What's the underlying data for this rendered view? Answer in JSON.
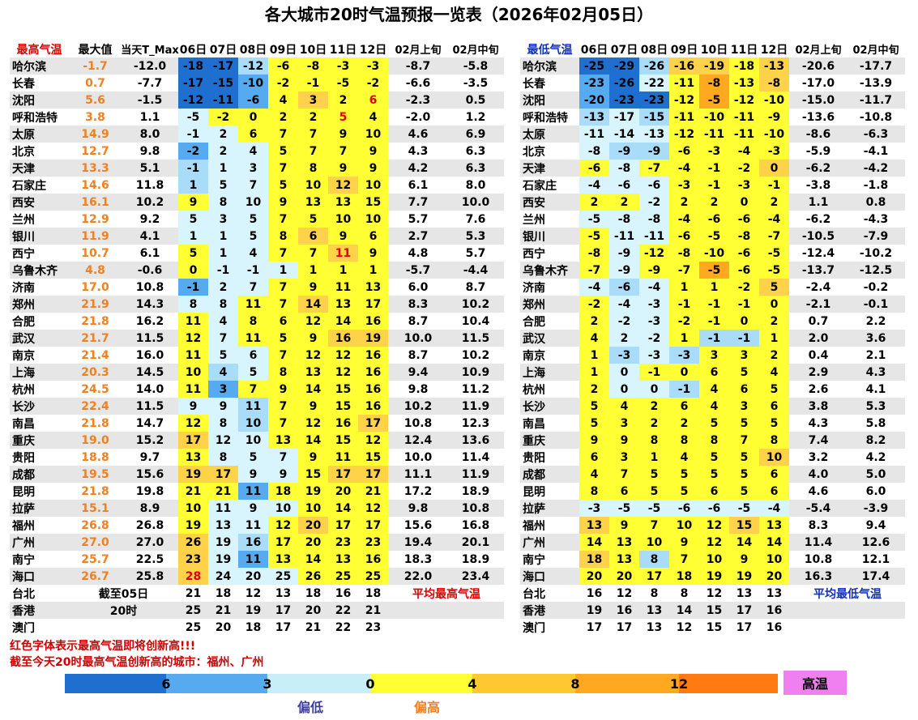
{
  "title": "各大城市20时气温预报一览表（2026年02月05日）",
  "max_table": {
    "header": [
      "最高气温",
      "最大值",
      "当天T_Max",
      "06日",
      "07日",
      "08日",
      "09日",
      "10日",
      "11日",
      "12日",
      "02月上旬",
      "02月中旬"
    ],
    "rows": [
      {
        "city": "哈尔滨",
        "max": "-1.7",
        "today": "-12.0",
        "days": [
          -18,
          -17,
          -12,
          -6,
          -8,
          -3,
          -3
        ],
        "early": "-8.7",
        "mid": "-5.8",
        "colors": "1135555"
      },
      {
        "city": "长春",
        "max": "0.7",
        "today": "-7.7",
        "days": [
          -17,
          -15,
          -10,
          -2,
          -1,
          -5,
          -2
        ],
        "early": "-6.6",
        "mid": "-3.5",
        "colors": "1125555"
      },
      {
        "city": "沈阳",
        "max": "5.6",
        "today": "-1.5",
        "days": [
          -12,
          -11,
          -6,
          4,
          3,
          2,
          6
        ],
        "early": "-2.3",
        "mid": "0.5",
        "colors": "1125655",
        "red": [
          6
        ]
      },
      {
        "city": "呼和浩特",
        "max": "3.8",
        "today": "1.1",
        "days": [
          -5,
          -2,
          0,
          2,
          2,
          5,
          4
        ],
        "early": "-2.0",
        "mid": "1.2",
        "colors": "4555555",
        "red": [
          5
        ]
      },
      {
        "city": "太原",
        "max": "14.9",
        "today": "8.0",
        "days": [
          -1,
          2,
          6,
          7,
          7,
          9,
          10
        ],
        "early": "4.6",
        "mid": "6.9",
        "colors": "4455555"
      },
      {
        "city": "北京",
        "max": "12.7",
        "today": "9.8",
        "days": [
          -2,
          2,
          4,
          5,
          7,
          7,
          9
        ],
        "early": "4.3",
        "mid": "6.3",
        "colors": "2445555"
      },
      {
        "city": "天津",
        "max": "13.3",
        "today": "5.1",
        "days": [
          -1,
          1,
          3,
          7,
          8,
          9,
          9
        ],
        "early": "4.2",
        "mid": "6.3",
        "colors": "3445555"
      },
      {
        "city": "石家庄",
        "max": "14.6",
        "today": "11.8",
        "days": [
          1,
          5,
          7,
          5,
          10,
          12,
          10
        ],
        "early": "6.1",
        "mid": "8.0",
        "colors": "3445565"
      },
      {
        "city": "西安",
        "max": "16.1",
        "today": "10.2",
        "days": [
          9,
          8,
          10,
          9,
          13,
          13,
          15
        ],
        "early": "7.7",
        "mid": "10.0",
        "colors": "5445555"
      },
      {
        "city": "兰州",
        "max": "12.9",
        "today": "9.2",
        "days": [
          5,
          3,
          5,
          7,
          5,
          10,
          10
        ],
        "early": "5.7",
        "mid": "7.6",
        "colors": "4445555"
      },
      {
        "city": "银川",
        "max": "11.9",
        "today": "4.1",
        "days": [
          1,
          1,
          5,
          8,
          6,
          9,
          6
        ],
        "early": "2.7",
        "mid": "5.3",
        "colors": "4445655"
      },
      {
        "city": "西宁",
        "max": "10.7",
        "today": "6.1",
        "days": [
          5,
          1,
          4,
          7,
          7,
          11,
          9
        ],
        "early": "4.8",
        "mid": "5.7",
        "colors": "5445565",
        "red": [
          5
        ]
      },
      {
        "city": "乌鲁木齐",
        "max": "4.8",
        "today": "-0.6",
        "days": [
          0,
          -1,
          -1,
          1,
          1,
          1,
          1
        ],
        "early": "-5.7",
        "mid": "-4.4",
        "colors": "5444555"
      },
      {
        "city": "济南",
        "max": "17.0",
        "today": "10.8",
        "days": [
          -1,
          2,
          7,
          7,
          9,
          11,
          13
        ],
        "early": "6.0",
        "mid": "8.7",
        "colors": "2445555"
      },
      {
        "city": "郑州",
        "max": "21.9",
        "today": "14.3",
        "days": [
          8,
          8,
          11,
          7,
          14,
          13,
          17
        ],
        "early": "8.3",
        "mid": "10.2",
        "colors": "4455655"
      },
      {
        "city": "合肥",
        "max": "21.8",
        "today": "16.2",
        "days": [
          11,
          4,
          8,
          6,
          12,
          14,
          16
        ],
        "early": "8.7",
        "mid": "10.4",
        "colors": "5455555"
      },
      {
        "city": "武汉",
        "max": "21.7",
        "today": "11.5",
        "days": [
          12,
          7,
          11,
          5,
          9,
          16,
          19
        ],
        "early": "10.0",
        "mid": "11.5",
        "colors": "5455566"
      },
      {
        "city": "南京",
        "max": "21.4",
        "today": "16.0",
        "days": [
          11,
          5,
          6,
          7,
          12,
          12,
          16
        ],
        "early": "8.7",
        "mid": "10.2",
        "colors": "5445555"
      },
      {
        "city": "上海",
        "max": "20.3",
        "today": "14.5",
        "days": [
          10,
          4,
          5,
          8,
          13,
          12,
          16
        ],
        "early": "9.4",
        "mid": "10.9",
        "colors": "5345555"
      },
      {
        "city": "杭州",
        "max": "24.5",
        "today": "14.0",
        "days": [
          11,
          3,
          7,
          9,
          14,
          15,
          16
        ],
        "early": "9.8",
        "mid": "11.2",
        "colors": "5255555"
      },
      {
        "city": "长沙",
        "max": "22.4",
        "today": "11.5",
        "days": [
          9,
          9,
          11,
          7,
          9,
          15,
          16
        ],
        "early": "10.2",
        "mid": "11.9",
        "colors": "4435555"
      },
      {
        "city": "南昌",
        "max": "21.8",
        "today": "14.7",
        "days": [
          12,
          8,
          10,
          7,
          12,
          16,
          17
        ],
        "early": "10.8",
        "mid": "12.3",
        "colors": "5435556"
      },
      {
        "city": "重庆",
        "max": "19.0",
        "today": "15.2",
        "days": [
          17,
          12,
          10,
          13,
          14,
          15,
          12
        ],
        "early": "12.4",
        "mid": "13.6",
        "colors": "6445555"
      },
      {
        "city": "贵阳",
        "max": "18.8",
        "today": "9.7",
        "days": [
          13,
          8,
          5,
          7,
          9,
          11,
          15
        ],
        "early": "10.0",
        "mid": "11.4",
        "colors": "5444555"
      },
      {
        "city": "成都",
        "max": "19.5",
        "today": "15.6",
        "days": [
          19,
          17,
          9,
          9,
          15,
          17,
          17
        ],
        "early": "11.1",
        "mid": "11.9",
        "colors": "6644566"
      },
      {
        "city": "昆明",
        "max": "21.8",
        "today": "19.8",
        "days": [
          21,
          21,
          11,
          18,
          19,
          20,
          21
        ],
        "early": "17.2",
        "mid": "18.9",
        "colors": "5525555"
      },
      {
        "city": "拉萨",
        "max": "15.1",
        "today": "8.9",
        "days": [
          10,
          11,
          9,
          10,
          10,
          14,
          12
        ],
        "early": "9.8",
        "mid": "10.8",
        "colors": "5444555"
      },
      {
        "city": "福州",
        "max": "26.8",
        "today": "26.8",
        "days": [
          19,
          13,
          11,
          12,
          20,
          17,
          17
        ],
        "early": "15.6",
        "mid": "16.8",
        "colors": "5445655"
      },
      {
        "city": "广州",
        "max": "27.0",
        "today": "27.0",
        "days": [
          26,
          19,
          16,
          17,
          20,
          23,
          23
        ],
        "early": "19.4",
        "mid": "20.1",
        "colors": "6435555"
      },
      {
        "city": "南宁",
        "max": "25.7",
        "today": "22.5",
        "days": [
          23,
          19,
          11,
          13,
          14,
          13,
          16
        ],
        "early": "18.3",
        "mid": "18.9",
        "colors": "6425555"
      },
      {
        "city": "海口",
        "max": "26.7",
        "today": "25.8",
        "days": [
          28,
          24,
          20,
          25,
          26,
          25,
          25
        ],
        "early": "22.0",
        "mid": "23.4",
        "colors": "6444555",
        "red": [
          0
        ]
      },
      {
        "city": "台北",
        "note": "截至05日",
        "days": [
          21,
          18,
          12,
          13,
          18,
          16,
          18
        ],
        "note2": "平均最高气温"
      },
      {
        "city": "香港",
        "note": "20时",
        "days": [
          25,
          21,
          19,
          17,
          20,
          22,
          21
        ]
      },
      {
        "city": "澳门",
        "days": [
          25,
          20,
          18,
          17,
          21,
          22,
          23
        ]
      }
    ]
  },
  "min_table": {
    "header": [
      "最低气温",
      "06日",
      "07日",
      "08日",
      "09日",
      "10日",
      "11日",
      "12日",
      "02月上旬",
      "02月中旬"
    ],
    "rows": [
      {
        "city": "哈尔滨",
        "days": [
          -25,
          -29,
          -26,
          -16,
          -19,
          -18,
          -13
        ],
        "early": "-20.6",
        "mid": "-17.7",
        "colors": "1136656"
      },
      {
        "city": "长春",
        "days": [
          -23,
          -26,
          -22,
          -11,
          -8,
          -13,
          -8
        ],
        "early": "-17.0",
        "mid": "-13.9",
        "colors": "2145756"
      },
      {
        "city": "沈阳",
        "days": [
          -20,
          -23,
          -23,
          -12,
          -5,
          -12,
          -10
        ],
        "early": "-15.0",
        "mid": "-11.7",
        "colors": "2115755"
      },
      {
        "city": "呼和浩特",
        "days": [
          -13,
          -17,
          -15,
          -11,
          -10,
          -11,
          -9
        ],
        "early": "-13.6",
        "mid": "-10.8",
        "colors": "3435555"
      },
      {
        "city": "太原",
        "days": [
          -11,
          -14,
          -13,
          -12,
          -11,
          -11,
          -10
        ],
        "early": "-8.6",
        "mid": "-6.3",
        "colors": "4445555"
      },
      {
        "city": "北京",
        "days": [
          -8,
          -9,
          -9,
          -6,
          -3,
          -4,
          -3
        ],
        "early": "-5.9",
        "mid": "-4.1",
        "colors": "4335555"
      },
      {
        "city": "天津",
        "days": [
          -6,
          -8,
          -7,
          -4,
          -1,
          -2,
          0
        ],
        "early": "-6.2",
        "mid": "-4.2",
        "colors": "5455556"
      },
      {
        "city": "石家庄",
        "days": [
          -4,
          -6,
          -6,
          -3,
          -1,
          -3,
          -1
        ],
        "early": "-3.8",
        "mid": "-1.8",
        "colors": "4445555"
      },
      {
        "city": "西安",
        "days": [
          2,
          2,
          -2,
          2,
          2,
          0,
          2
        ],
        "early": "1.1",
        "mid": "0.8",
        "colors": "5545555"
      },
      {
        "city": "兰州",
        "days": [
          -5,
          -8,
          -8,
          -4,
          -6,
          -6,
          -4
        ],
        "early": "-6.2",
        "mid": "-4.3",
        "colors": "4445555"
      },
      {
        "city": "银川",
        "days": [
          -5,
          -11,
          -11,
          -6,
          -5,
          -8,
          -7
        ],
        "early": "-10.5",
        "mid": "-7.9",
        "colors": "5445555"
      },
      {
        "city": "西宁",
        "days": [
          -8,
          -9,
          -12,
          -8,
          -10,
          -6,
          -5
        ],
        "early": "-12.4",
        "mid": "-10.2",
        "colors": "5455555"
      },
      {
        "city": "乌鲁木齐",
        "days": [
          -7,
          -9,
          -9,
          -7,
          -5,
          -6,
          -5
        ],
        "early": "-13.7",
        "mid": "-12.5",
        "colors": "5455755"
      },
      {
        "city": "济南",
        "days": [
          -4,
          -6,
          -4,
          1,
          1,
          -2,
          5
        ],
        "early": "-2.4",
        "mid": "-0.2",
        "colors": "4345556"
      },
      {
        "city": "郑州",
        "days": [
          -2,
          -4,
          -3,
          -1,
          -1,
          -1,
          0
        ],
        "early": "-2.1",
        "mid": "-0.1",
        "colors": "5445555"
      },
      {
        "city": "合肥",
        "days": [
          2,
          -2,
          -3,
          -2,
          -1,
          0,
          2
        ],
        "early": "0.7",
        "mid": "2.2",
        "colors": "5445555"
      },
      {
        "city": "武汉",
        "days": [
          4,
          2,
          -2,
          1,
          -1,
          -1,
          1
        ],
        "early": "2.0",
        "mid": "3.6",
        "colors": "5445335"
      },
      {
        "city": "南京",
        "days": [
          1,
          -3,
          -3,
          -3,
          3,
          3,
          2
        ],
        "early": "0.4",
        "mid": "2.1",
        "colors": "5343555"
      },
      {
        "city": "上海",
        "days": [
          1,
          0,
          -1,
          0,
          6,
          5,
          4
        ],
        "early": "2.9",
        "mid": "4.3",
        "colors": "5455555"
      },
      {
        "city": "杭州",
        "days": [
          2,
          0,
          0,
          -1,
          4,
          6,
          5
        ],
        "early": "2.6",
        "mid": "4.1",
        "colors": "5443555"
      },
      {
        "city": "长沙",
        "days": [
          5,
          4,
          2,
          6,
          4,
          3,
          6
        ],
        "early": "3.8",
        "mid": "5.3",
        "colors": "5555555"
      },
      {
        "city": "南昌",
        "days": [
          5,
          3,
          2,
          2,
          5,
          5,
          5
        ],
        "early": "4.3",
        "mid": "5.8",
        "colors": "5555555"
      },
      {
        "city": "重庆",
        "days": [
          9,
          9,
          8,
          8,
          8,
          7,
          8
        ],
        "early": "7.4",
        "mid": "8.2",
        "colors": "5555555"
      },
      {
        "city": "贵阳",
        "days": [
          6,
          3,
          1,
          4,
          5,
          5,
          10
        ],
        "early": "3.2",
        "mid": "4.2",
        "colors": "5555556"
      },
      {
        "city": "成都",
        "days": [
          4,
          7,
          5,
          5,
          5,
          5,
          6
        ],
        "early": "4.0",
        "mid": "5.0",
        "colors": "5555555"
      },
      {
        "city": "昆明",
        "days": [
          8,
          6,
          5,
          5,
          6,
          5,
          6
        ],
        "early": "4.6",
        "mid": "6.0",
        "colors": "5555555"
      },
      {
        "city": "拉萨",
        "days": [
          -3,
          -5,
          -5,
          -6,
          -6,
          -5,
          -4
        ],
        "early": "-5.4",
        "mid": "-3.9",
        "colors": "4444444"
      },
      {
        "city": "福州",
        "days": [
          13,
          9,
          7,
          10,
          12,
          15,
          13
        ],
        "early": "8.3",
        "mid": "9.4",
        "colors": "6555565"
      },
      {
        "city": "广州",
        "days": [
          14,
          13,
          10,
          9,
          12,
          14,
          14
        ],
        "early": "11.4",
        "mid": "12.6",
        "colors": "5555555"
      },
      {
        "city": "南宁",
        "days": [
          18,
          13,
          8,
          7,
          10,
          9,
          10
        ],
        "early": "10.8",
        "mid": "12.1",
        "colors": "6535555"
      },
      {
        "city": "海口",
        "days": [
          20,
          20,
          17,
          18,
          19,
          19,
          20
        ],
        "early": "16.3",
        "mid": "17.4",
        "colors": "5555555"
      },
      {
        "city": "台北",
        "days": [
          16,
          12,
          8,
          8,
          12,
          13,
          13
        ],
        "note2": "平均最低气温"
      },
      {
        "city": "香港",
        "days": [
          19,
          16,
          13,
          14,
          15,
          17,
          16
        ]
      },
      {
        "city": "澳门",
        "days": [
          17,
          17,
          13,
          12,
          15,
          17,
          16
        ]
      }
    ]
  },
  "palette": {
    "1": "#1f6fd0",
    "2": "#55aaf0",
    "3": "#a8dcf8",
    "4": "#d8f4fc",
    "5": "#ffff33",
    "6": "#ffd24a",
    "7": "#ffa820",
    "8": "#ff7a10"
  },
  "notes": [
    "红色字体表示最高气温即将创新高!!!",
    "截至今天20时最高气温创新高的城市：福州、广州"
  ],
  "legend": {
    "colors": [
      "#1f6fd0",
      "#55aaf0",
      "#c8eefa",
      "#ffff33",
      "#ffc830",
      "#ffa820",
      "#ff7a10"
    ],
    "ticks": [
      "6",
      "3",
      "0",
      "4",
      "8",
      "12"
    ],
    "hot": "高温",
    "hot_color": "#f080f0",
    "low": "偏低",
    "high": "偏高"
  }
}
